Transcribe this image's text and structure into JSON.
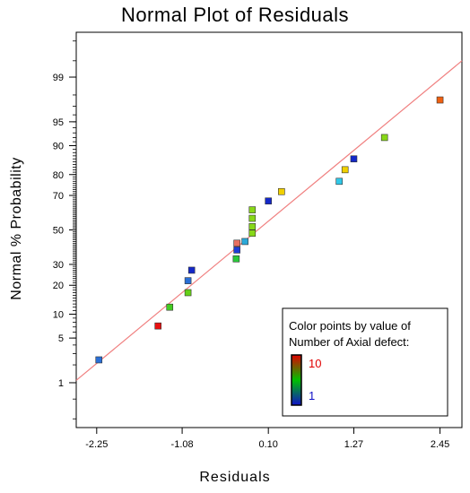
{
  "chart_data": {
    "type": "scatter",
    "title": "Normal Plot of Residuals",
    "xlabel": "Residuals",
    "ylabel": "Normal % Probability",
    "x_ticks": [
      "-2.25",
      "-1.08",
      "0.10",
      "1.27",
      "2.45"
    ],
    "x_tick_values": [
      -2.25,
      -1.08,
      0.1,
      1.27,
      2.45
    ],
    "y_ticks": [
      "1",
      "5",
      "10",
      "20",
      "30",
      "50",
      "70",
      "80",
      "90",
      "95",
      "99"
    ],
    "y_tick_values": [
      1,
      5,
      10,
      20,
      30,
      50,
      70,
      80,
      90,
      95,
      99
    ],
    "xlim": [
      -2.53,
      2.75
    ],
    "ylim_percent": [
      0.13,
      99.87
    ],
    "y_scale": "normal-probability",
    "reference_line": {
      "color": "#f08080",
      "x": [
        -2.53,
        2.75
      ],
      "y": [
        1.1,
        99.5
      ]
    },
    "points": [
      {
        "x": -2.22,
        "y": 2.4,
        "color": "#2a6fd6"
      },
      {
        "x": -1.41,
        "y": 7.2,
        "color": "#e81010"
      },
      {
        "x": -1.25,
        "y": 12,
        "color": "#44cc22"
      },
      {
        "x": -1.0,
        "y": 17,
        "color": "#66d018"
      },
      {
        "x": -1.0,
        "y": 22,
        "color": "#2a6fd6"
      },
      {
        "x": -0.95,
        "y": 27,
        "color": "#1428c8"
      },
      {
        "x": -0.34,
        "y": 33,
        "color": "#2ac83a"
      },
      {
        "x": -0.33,
        "y": 38,
        "color": "#1e3cd6"
      },
      {
        "x": -0.33,
        "y": 42,
        "color": "#e87060"
      },
      {
        "x": -0.22,
        "y": 43,
        "color": "#2aa8d8"
      },
      {
        "x": -0.12,
        "y": 48,
        "color": "#88d818"
      },
      {
        "x": -0.12,
        "y": 52,
        "color": "#88d818"
      },
      {
        "x": -0.12,
        "y": 57,
        "color": "#88d818"
      },
      {
        "x": -0.12,
        "y": 62,
        "color": "#88d818"
      },
      {
        "x": 0.1,
        "y": 67,
        "color": "#1428c8"
      },
      {
        "x": 0.28,
        "y": 72,
        "color": "#f0d000"
      },
      {
        "x": 1.07,
        "y": 77,
        "color": "#30c8e8"
      },
      {
        "x": 1.15,
        "y": 82,
        "color": "#f0d000"
      },
      {
        "x": 1.27,
        "y": 86,
        "color": "#1428c8"
      },
      {
        "x": 1.69,
        "y": 92,
        "color": "#88d818"
      },
      {
        "x": 2.45,
        "y": 97.6,
        "color": "#f06010"
      }
    ],
    "legend": {
      "title_line1": "Color points by value of",
      "title_line2": "Number of Axial defect:",
      "max_label": "10",
      "min_label": "1",
      "max_color": "#e00000",
      "min_color": "#1010c8",
      "placement": "bottom-right"
    }
  }
}
